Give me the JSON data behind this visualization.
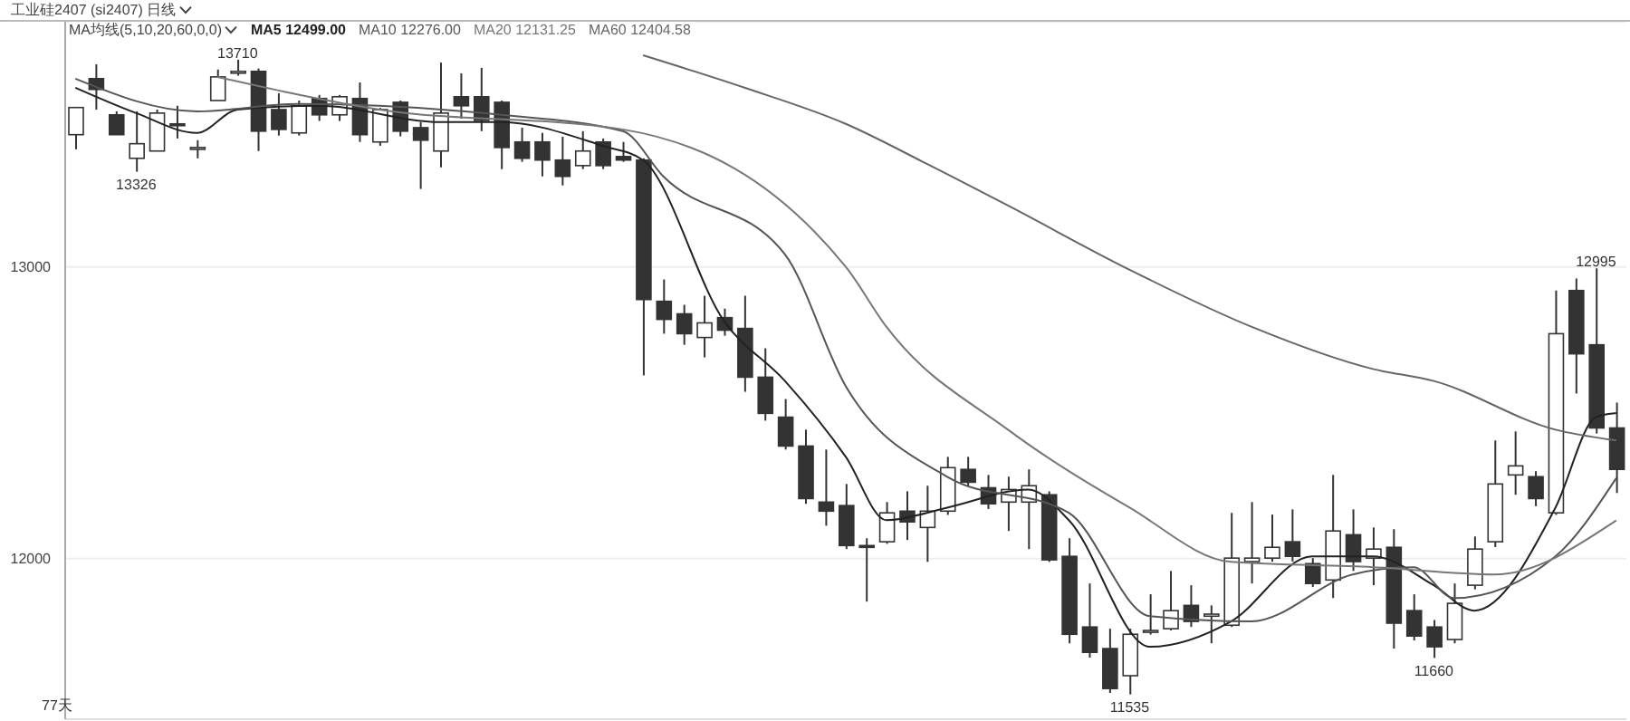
{
  "chart_data": {
    "type": "candlestick",
    "title": "工业硅2407 (si2407) 日线",
    "legend_title": "MA均线(5,10,20,60,0,0)",
    "color": "#333333",
    "categories": [
      null,
      null,
      null,
      null,
      null,
      null,
      null,
      null,
      null,
      null,
      null,
      null,
      null,
      null,
      null,
      null,
      null,
      null,
      null,
      null,
      null,
      null,
      null,
      null,
      null,
      null,
      null,
      null,
      null,
      null,
      null,
      null,
      null,
      null,
      null,
      null,
      null,
      null,
      null,
      null,
      null,
      null,
      null,
      null,
      null,
      null,
      null,
      null,
      null,
      null,
      null,
      null,
      null,
      null,
      null,
      null,
      null,
      null,
      null,
      null,
      null,
      null,
      null,
      null,
      null,
      null,
      null,
      null,
      null,
      null,
      null,
      null,
      null,
      null,
      null,
      null,
      null
    ],
    "ohlc": [
      [
        13453,
        13546,
        13403,
        13546
      ],
      [
        13645,
        13694,
        13539,
        13608
      ],
      [
        13521,
        13533,
        13453,
        13453
      ],
      [
        13372,
        13533,
        13326,
        13422
      ],
      [
        13397,
        13539,
        13397,
        13527
      ],
      [
        13490,
        13552,
        13440,
        13484
      ],
      [
        13409,
        13434,
        13372,
        13409
      ],
      [
        13570,
        13676,
        13570,
        13651
      ],
      [
        13665,
        13710,
        13655,
        13670
      ],
      [
        13670,
        13680,
        13397,
        13465
      ],
      [
        13539,
        13595,
        13450,
        13471
      ],
      [
        13459,
        13570,
        13450,
        13552
      ],
      [
        13577,
        13589,
        13500,
        13521
      ],
      [
        13521,
        13589,
        13500,
        13583
      ],
      [
        13577,
        13632,
        13428,
        13453
      ],
      [
        13428,
        13545,
        13415,
        13539
      ],
      [
        13564,
        13570,
        13447,
        13465
      ],
      [
        13477,
        13496,
        13267,
        13434
      ],
      [
        13397,
        13700,
        13341,
        13527
      ],
      [
        13583,
        13663,
        13508,
        13552
      ],
      [
        13583,
        13682,
        13465,
        13502
      ],
      [
        13564,
        13570,
        13335,
        13409
      ],
      [
        13428,
        13477,
        13360,
        13372
      ],
      [
        13428,
        13459,
        13310,
        13366
      ],
      [
        13366,
        13446,
        13279,
        13310
      ],
      [
        13347,
        13465,
        13335,
        13397
      ],
      [
        13428,
        13440,
        13335,
        13347
      ],
      [
        13378,
        13428,
        13360,
        13366
      ],
      [
        13366,
        13372,
        12628,
        12888
      ],
      [
        12882,
        12957,
        12771,
        12820
      ],
      [
        12839,
        12870,
        12733,
        12771
      ],
      [
        12758,
        12901,
        12690,
        12808
      ],
      [
        12826,
        12857,
        12764,
        12783
      ],
      [
        12789,
        12901,
        12572,
        12622
      ],
      [
        12622,
        12721,
        12473,
        12498
      ],
      [
        12485,
        12547,
        12374,
        12386
      ],
      [
        12386,
        12442,
        12188,
        12206
      ],
      [
        12194,
        12374,
        12113,
        12163
      ],
      [
        12182,
        12256,
        12033,
        12045
      ],
      [
        12045,
        12070,
        11853,
        12039
      ],
      [
        12058,
        12194,
        12051,
        12157
      ],
      [
        12163,
        12231,
        12064,
        12126
      ],
      [
        12107,
        12250,
        11989,
        12163
      ],
      [
        12163,
        12349,
        12150,
        12312
      ],
      [
        12306,
        12349,
        12250,
        12262
      ],
      [
        12243,
        12287,
        12170,
        12188
      ],
      [
        12194,
        12281,
        12095,
        12237
      ],
      [
        12194,
        12306,
        12033,
        12250
      ],
      [
        12219,
        12231,
        11989,
        11996
      ],
      [
        12008,
        12070,
        11710,
        11741
      ],
      [
        11766,
        11915,
        11661,
        11679
      ],
      [
        11692,
        11760,
        11540,
        11555
      ],
      [
        11599,
        11760,
        11535,
        11741
      ],
      [
        11748,
        11878,
        11740,
        11754
      ],
      [
        11760,
        11958,
        11754,
        11822
      ],
      [
        11840,
        11909,
        11766,
        11785
      ],
      [
        11803,
        11840,
        11710,
        11810
      ],
      [
        11772,
        12157,
        11766,
        12002
      ],
      [
        11990,
        12194,
        11915,
        12002
      ],
      [
        12002,
        12151,
        11990,
        12039
      ],
      [
        12058,
        12169,
        11990,
        12008
      ],
      [
        11983,
        12002,
        11903,
        11915
      ],
      [
        11927,
        12287,
        11865,
        12095
      ],
      [
        12082,
        12169,
        11958,
        11990
      ],
      [
        12002,
        12107,
        11909,
        12033
      ],
      [
        12039,
        12101,
        11692,
        11779
      ],
      [
        11822,
        11878,
        11720,
        11735
      ],
      [
        11766,
        11790,
        11660,
        11698
      ],
      [
        11723,
        11915,
        11710,
        11847
      ],
      [
        11909,
        12076,
        11895,
        12033
      ],
      [
        12058,
        12405,
        12040,
        12256
      ],
      [
        12287,
        12436,
        12219,
        12318
      ],
      [
        12281,
        12300,
        12180,
        12206
      ],
      [
        12157,
        12919,
        12150,
        12771
      ],
      [
        12919,
        12960,
        12566,
        12702
      ],
      [
        12733,
        12995,
        12429,
        12448
      ],
      [
        12448,
        12535,
        12225,
        12306
      ]
    ],
    "series": [
      {
        "type": "line",
        "name": "MA5 12499.00",
        "color": "#222222",
        "values": [
          13614,
          null,
          null,
          13527,
          null,
          null,
          13459,
          null,
          13539,
          null,
          null,
          null,
          13552,
          null,
          null,
          null,
          null,
          null,
          13496,
          null,
          null,
          13496,
          null,
          null,
          null,
          null,
          13415,
          null,
          13366,
          null,
          null,
          null,
          12814,
          null,
          null,
          12609,
          null,
          null,
          12349,
          null,
          12132,
          null,
          null,
          12175,
          null,
          null,
          null,
          12237,
          null,
          12132,
          null,
          null,
          null,
          11698,
          null,
          null,
          null,
          11785,
          null,
          null,
          null,
          12008,
          null,
          null,
          12008,
          null,
          null,
          11909,
          null,
          11822,
          null,
          null,
          null,
          12175,
          null,
          12485,
          12499
        ]
      },
      {
        "type": "line",
        "name": "MA10 12276.00",
        "color": "#555555",
        "values": [
          13645,
          null,
          null,
          null,
          null,
          null,
          13533,
          null,
          null,
          null,
          null,
          13558,
          null,
          null,
          null,
          null,
          null,
          null,
          null,
          null,
          null,
          13521,
          null,
          null,
          null,
          null,
          null,
          13465,
          null,
          13310,
          null,
          null,
          null,
          null,
          null,
          13043,
          null,
          null,
          12591,
          null,
          null,
          null,
          null,
          12281,
          null,
          null,
          null,
          null,
          null,
          12157,
          null,
          null,
          null,
          11803,
          null,
          null,
          null,
          null,
          11785,
          null,
          null,
          null,
          null,
          11946,
          null,
          null,
          11971,
          null,
          11865,
          null,
          null,
          null,
          null,
          12008,
          null,
          null,
          12276
        ]
      },
      {
        "type": "line",
        "name": "MA20 12131.25",
        "color": "#777777",
        "values": [
          null,
          null,
          null,
          null,
          null,
          null,
          null,
          13651,
          null,
          null,
          null,
          null,
          null,
          null,
          null,
          13539,
          null,
          null,
          null,
          null,
          null,
          null,
          null,
          null,
          null,
          null,
          null,
          13471,
          null,
          null,
          null,
          null,
          null,
          null,
          null,
          null,
          null,
          null,
          13000,
          null,
          12795,
          null,
          null,
          null,
          null,
          null,
          12442,
          null,
          null,
          null,
          null,
          null,
          12175,
          null,
          null,
          null,
          null,
          11989,
          null,
          null,
          null,
          null,
          null,
          null,
          11971,
          null,
          null,
          null,
          null,
          null,
          11946,
          null,
          null,
          null,
          null,
          null,
          12131
        ]
      },
      {
        "type": "line",
        "name": "MA60 12404.58",
        "color": "#666666",
        "values": [
          null,
          null,
          null,
          null,
          null,
          null,
          null,
          null,
          null,
          null,
          null,
          null,
          null,
          null,
          null,
          null,
          null,
          null,
          null,
          null,
          null,
          null,
          null,
          null,
          null,
          null,
          null,
          null,
          13725,
          null,
          null,
          null,
          null,
          13614,
          null,
          null,
          null,
          null,
          13490,
          null,
          null,
          null,
          13353,
          null,
          null,
          null,
          13210,
          null,
          null,
          null,
          null,
          null,
          12990,
          null,
          null,
          null,
          null,
          null,
          12795,
          null,
          null,
          null,
          null,
          null,
          12650,
          null,
          null,
          12609,
          null,
          null,
          null,
          null,
          null,
          12442,
          null,
          null,
          12405
        ]
      }
    ],
    "ylim": [
      11450,
      13840
    ],
    "yticks": [
      12000,
      13000
    ],
    "grid": "y",
    "legend": "top left",
    "tick_labels": "y",
    "annotations": [
      {
        "text": "13710",
        "y": 13710
      },
      {
        "text": "13326",
        "y": 13326
      },
      {
        "text": "11535",
        "y": 11535
      },
      {
        "text": "11660",
        "y": 11660
      },
      {
        "text": "12995",
        "y": 12995
      },
      "77天"
    ]
  }
}
